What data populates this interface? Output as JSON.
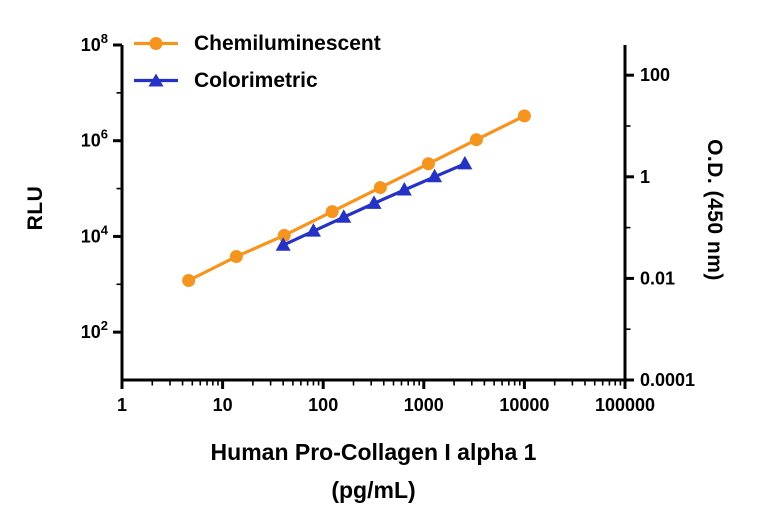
{
  "chart_data": {
    "type": "line",
    "title": "",
    "x_axis": {
      "label_line1": "Human Pro-Collagen I alpha 1",
      "label_line2": "(pg/mL)",
      "scale": "log",
      "range": [
        1,
        100000
      ],
      "tick_values": [
        1,
        10,
        100,
        1000,
        10000,
        100000
      ],
      "tick_labels": [
        "1",
        "10",
        "100",
        "1000",
        "10000",
        "100000"
      ]
    },
    "left_axis": {
      "label": "RLU",
      "scale": "log",
      "range": [
        10,
        100000000
      ],
      "tick_base": "10",
      "tick_exponents": [
        8,
        6,
        4,
        2
      ],
      "minor_exponents": [
        7,
        5,
        3
      ]
    },
    "right_axis": {
      "label": "O.D. (450 nm)",
      "scale": "log",
      "range": [
        0.0001,
        400
      ],
      "tick_values": [
        100,
        1,
        0.01,
        0.0001
      ],
      "tick_labels": [
        "100",
        "1",
        "0.01",
        "0.0001"
      ],
      "minor_values": [
        10,
        0.1,
        0.001
      ]
    },
    "legend_position": "top-left",
    "grid": false,
    "series": [
      {
        "name": "Chemiluminescent",
        "axis": "left",
        "color": "#F7941D",
        "marker": "circle",
        "x": [
          4.6,
          13.7,
          41,
          123,
          370,
          1111,
          3333,
          10000
        ],
        "y": [
          1200,
          3800,
          10500,
          33000,
          105000,
          330000,
          1050000,
          3300000
        ]
      },
      {
        "name": "Colorimetric",
        "axis": "right",
        "color": "#2432C8",
        "marker": "triangle",
        "x": [
          40,
          80,
          160,
          320,
          640,
          1280,
          2560
        ],
        "y": [
          0.045,
          0.085,
          0.16,
          0.3,
          0.55,
          1.0,
          1.8
        ]
      }
    ]
  },
  "colors": {
    "axis": "#000000",
    "background": "#FFFFFF",
    "chemiluminescent": "#F7941D",
    "colorimetric": "#2432C8"
  }
}
